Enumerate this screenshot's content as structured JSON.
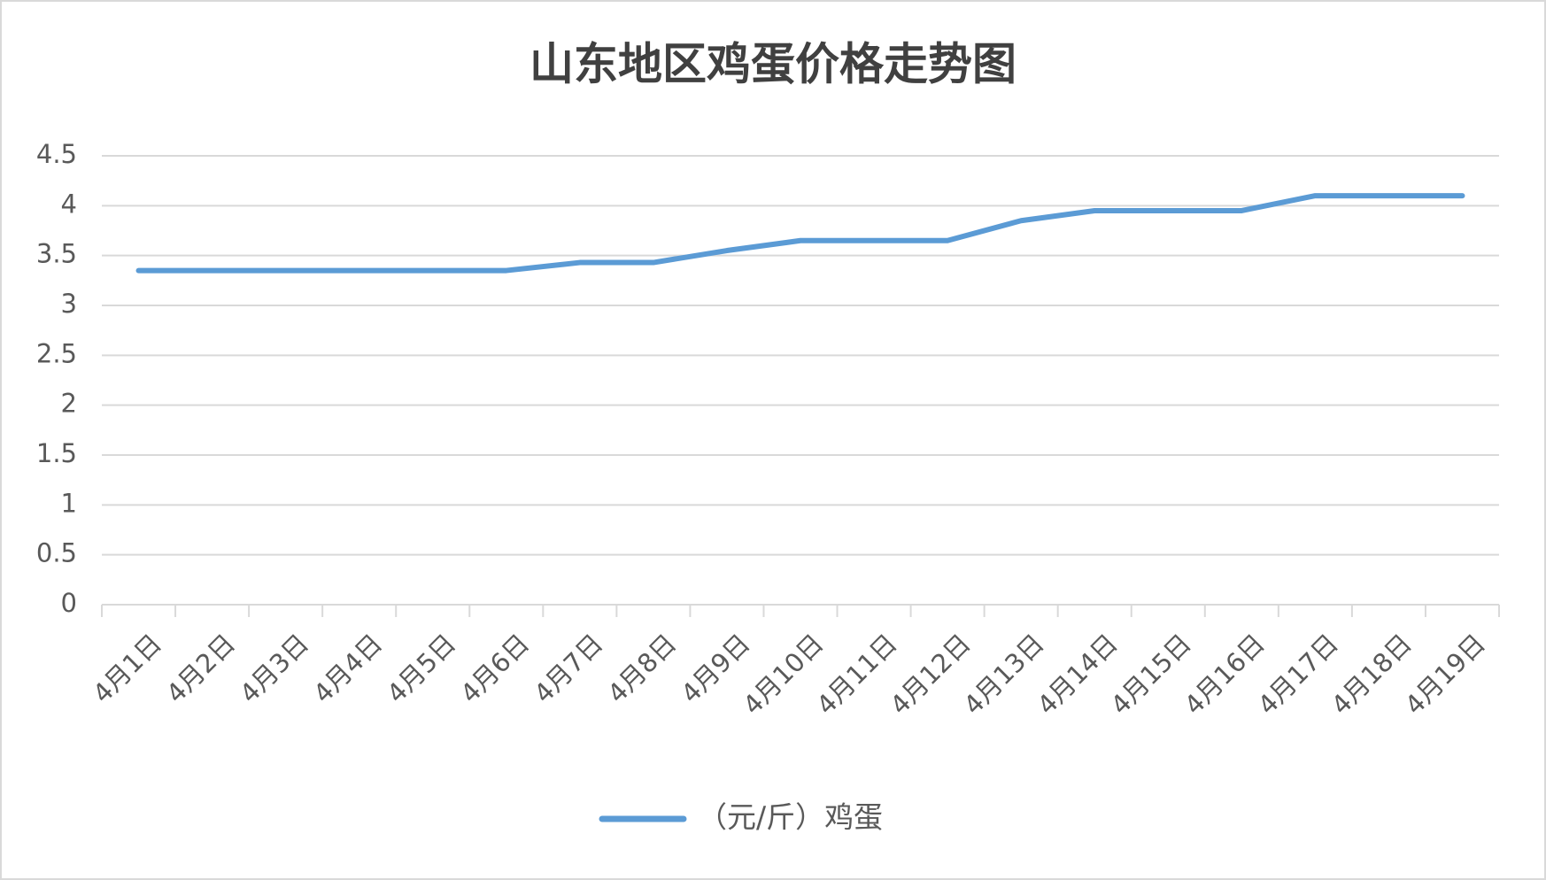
{
  "chart_data": {
    "type": "line",
    "title": "山东地区鸡蛋价格走势图",
    "categories": [
      "4月1日",
      "4月2日",
      "4月3日",
      "4月4日",
      "4月5日",
      "4月6日",
      "4月7日",
      "4月8日",
      "4月9日",
      "4月10日",
      "4月11日",
      "4月12日",
      "4月13日",
      "4月14日",
      "4月15日",
      "4月16日",
      "4月17日",
      "4月18日",
      "4月19日"
    ],
    "series": [
      {
        "name": "（元/斤）鸡蛋",
        "color": "#5b9bd5",
        "values": [
          3.35,
          3.35,
          3.35,
          3.35,
          3.35,
          3.35,
          3.43,
          3.43,
          3.55,
          3.65,
          3.65,
          3.65,
          3.85,
          3.95,
          3.95,
          3.95,
          4.1,
          4.1,
          4.1
        ]
      }
    ],
    "ylim": [
      0,
      4.5
    ],
    "yticks": [
      0,
      0.5,
      1,
      1.5,
      2,
      2.5,
      3,
      3.5,
      4,
      4.5
    ],
    "grid": true,
    "legend": "bottom"
  }
}
